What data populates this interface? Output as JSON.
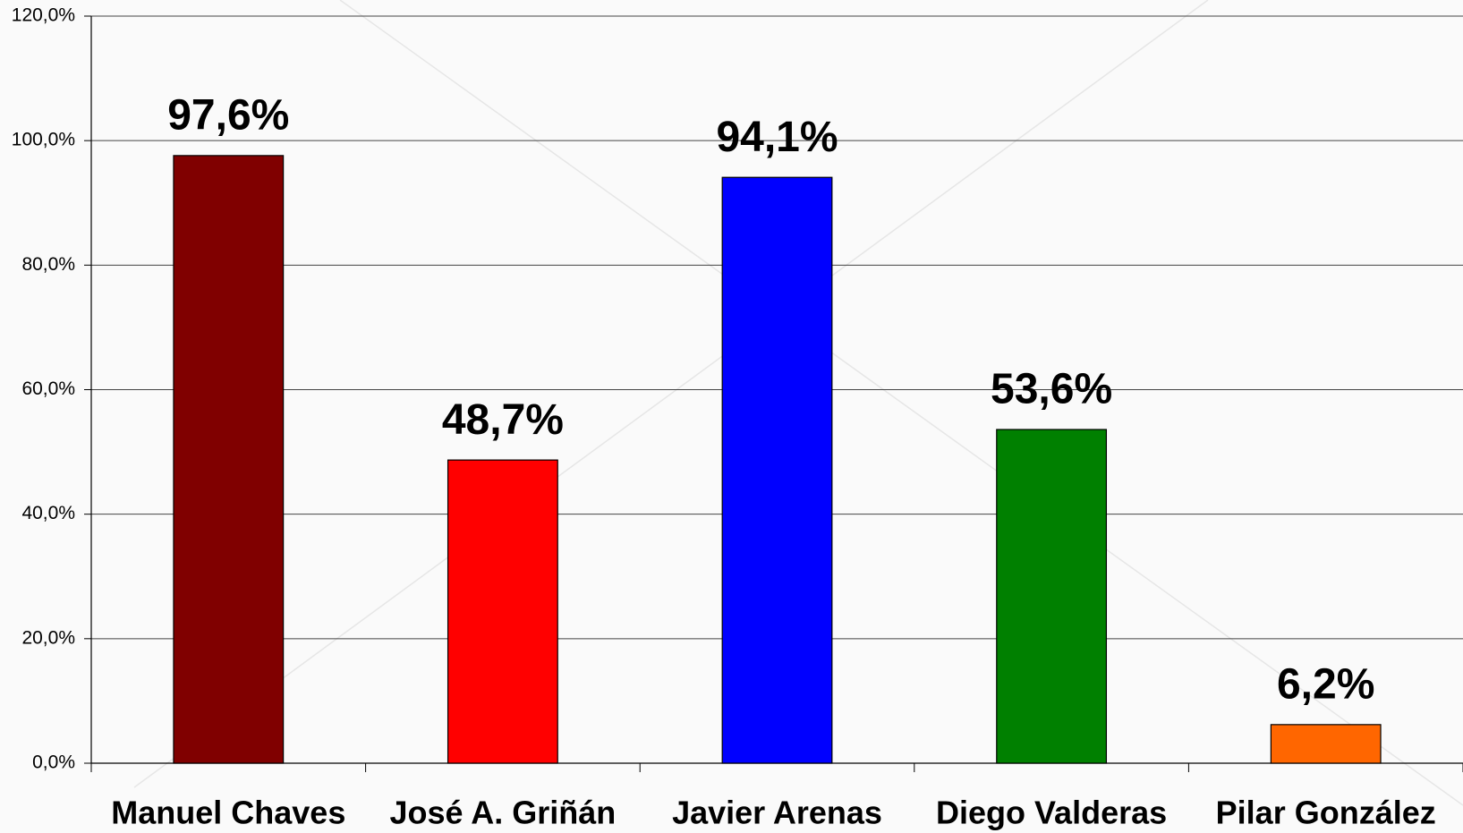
{
  "chart_data": {
    "type": "bar",
    "categories": [
      "Manuel Chaves",
      "José A. Griñán",
      "Javier Arenas",
      "Diego Valderas",
      "Pilar González"
    ],
    "values": [
      97.6,
      48.7,
      94.1,
      53.6,
      6.2
    ],
    "value_labels": [
      "97,6%",
      "48,7%",
      "94,1%",
      "53,6%",
      "6,2%"
    ],
    "colors": [
      "#800000",
      "#ff0000",
      "#0000ff",
      "#008000",
      "#ff6600"
    ],
    "ylim": [
      0,
      120
    ],
    "yticks": [
      {
        "value": 0,
        "label": "0,0%"
      },
      {
        "value": 20,
        "label": "20,0%"
      },
      {
        "value": 40,
        "label": "40,0%"
      },
      {
        "value": 60,
        "label": "60,0%"
      },
      {
        "value": 80,
        "label": "80,0%"
      },
      {
        "value": 100,
        "label": "100,0%"
      },
      {
        "value": 120,
        "label": "120,0%"
      }
    ],
    "grid": true
  }
}
